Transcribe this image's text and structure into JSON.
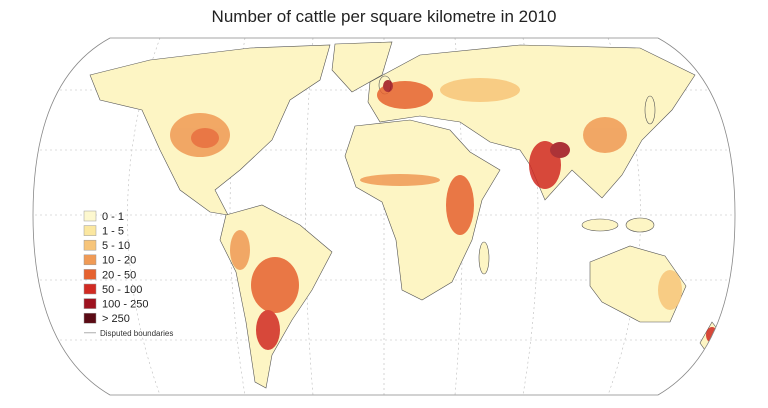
{
  "title": "Number of cattle per square kilometre in 2010",
  "legend": [
    {
      "label": "0 - 1",
      "color": "#fdf8cf"
    },
    {
      "label": "1 - 5",
      "color": "#fbe7a0"
    },
    {
      "label": "5 - 10",
      "color": "#f7c57a"
    },
    {
      "label": "10 - 20",
      "color": "#f09a55"
    },
    {
      "label": "20 - 50",
      "color": "#e6622f"
    },
    {
      "label": "50 - 100",
      "color": "#d12a22"
    },
    {
      "label": "100 - 250",
      "color": "#9e121f"
    },
    {
      "label": "> 250",
      "color": "#5a0a14"
    }
  ],
  "disputed": "Disputed boundaries"
}
